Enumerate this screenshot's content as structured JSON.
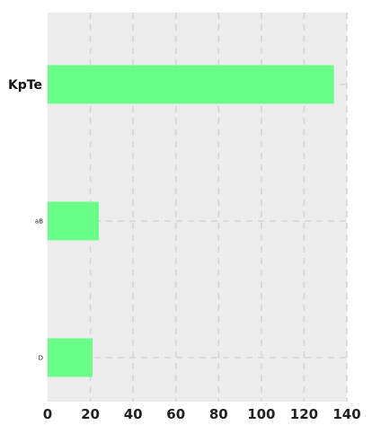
{
  "chart_data": {
    "type": "bar",
    "orientation": "horizontal",
    "categories": [
      "KpTe",
      "aB",
      "D"
    ],
    "values": [
      134,
      24,
      21
    ],
    "xlim": [
      0,
      140
    ],
    "xticks": [
      0,
      20,
      40,
      60,
      80,
      100,
      120,
      140
    ],
    "grid": true,
    "title": "",
    "xlabel": "",
    "ylabel": "",
    "colors": {
      "bar": "#6bff8a",
      "plot_background": "#ececec",
      "grid": "#d6d6d6",
      "page_background": "#ffffff"
    }
  }
}
